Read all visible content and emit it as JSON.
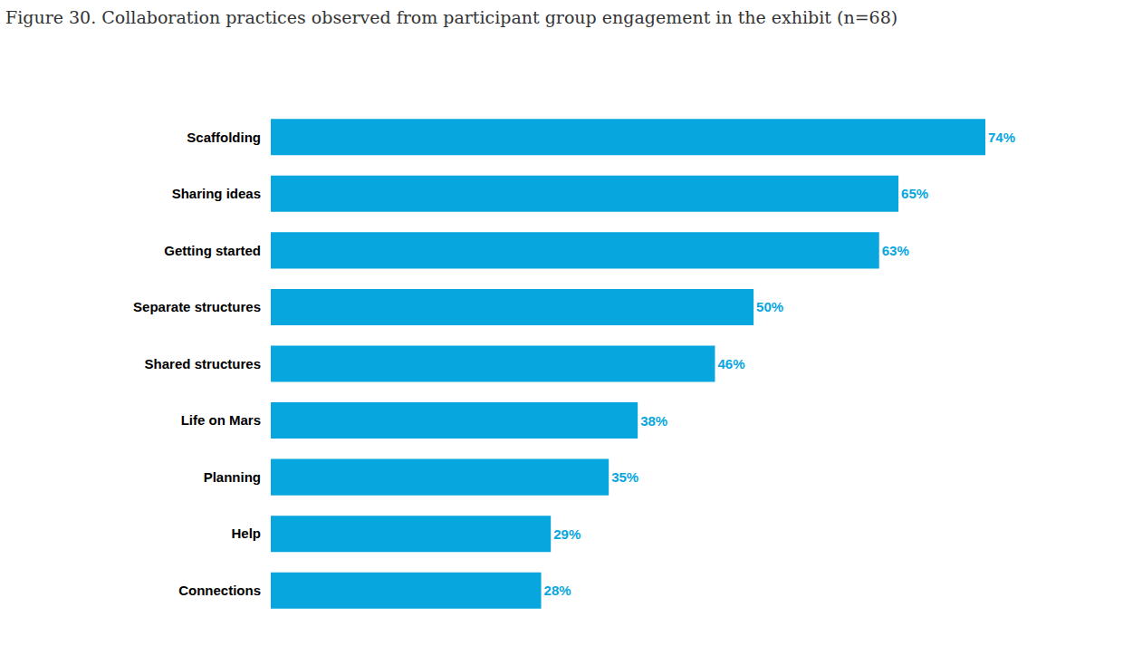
{
  "chart_data": {
    "type": "bar",
    "orientation": "horizontal",
    "title": "Figure 30. Collaboration practices observed from participant group engagement in the exhibit (n=68)",
    "categories": [
      "Scaffolding",
      "Sharing ideas",
      "Getting started",
      "Separate structures",
      "Shared structures",
      "Life on Mars",
      "Planning",
      "Help",
      "Connections"
    ],
    "values": [
      74,
      65,
      63,
      50,
      46,
      38,
      35,
      29,
      28
    ],
    "value_labels": [
      "74%",
      "65%",
      "63%",
      "50%",
      "46%",
      "38%",
      "35%",
      "29%",
      "28%"
    ],
    "color": "#07a6de",
    "xlim": [
      0,
      74
    ],
    "xticks": [],
    "grid": false,
    "data_labels": true,
    "tick_labels": "y"
  }
}
